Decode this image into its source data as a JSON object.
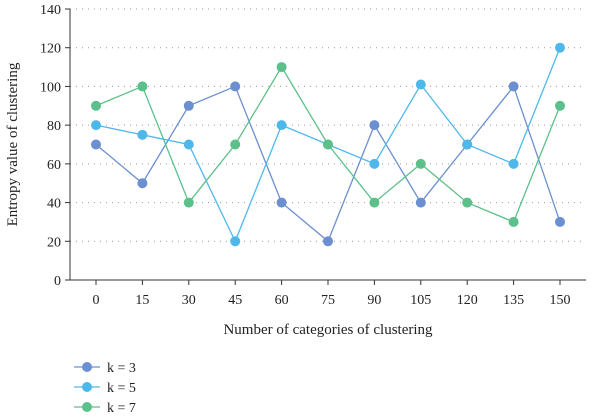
{
  "chart_data": {
    "type": "line",
    "title": "",
    "xlabel": "Number of categories of clustering",
    "ylabel": "Entropy value of clustering",
    "x": [
      0,
      15,
      30,
      45,
      60,
      75,
      90,
      105,
      120,
      135,
      150
    ],
    "x_tick_labels": [
      "0",
      "15",
      "30",
      "45",
      "60",
      "75",
      "90",
      "105",
      "120",
      "135",
      "150"
    ],
    "ylim": [
      0,
      140
    ],
    "y_ticks": [
      0,
      20,
      40,
      60,
      80,
      100,
      120,
      140
    ],
    "y_tick_labels": [
      "0",
      "20",
      "40",
      "60",
      "80",
      "100",
      "120",
      "140"
    ],
    "grid": "horizontal dotted",
    "legend_placement": "bottom-left",
    "series": [
      {
        "name": "k = 3",
        "color": "#6b8fd0",
        "values": [
          70,
          50,
          90,
          100,
          40,
          20,
          80,
          40,
          70,
          100,
          30
        ]
      },
      {
        "name": "k = 5",
        "color": "#4fb8ea",
        "values": [
          80,
          75,
          70,
          20,
          80,
          70,
          60,
          101,
          70,
          60,
          120
        ]
      },
      {
        "name": "k = 7",
        "color": "#5cc08a",
        "values": [
          90,
          100,
          40,
          70,
          110,
          70,
          40,
          60,
          40,
          30,
          90
        ]
      }
    ]
  }
}
